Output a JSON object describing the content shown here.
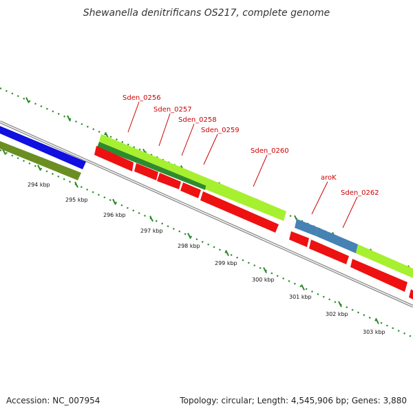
{
  "title": "Shewanella denitrificans OS217, complete genome",
  "footer": {
    "accession": "Accession: NC_007954",
    "summary": "Topology: circular; Length: 4,545,906 bp; Genes: 3,880"
  },
  "tick_labels": [
    "294 kbp",
    "295 kbp",
    "296 kbp",
    "297 kbp",
    "298 kbp",
    "299 kbp",
    "300 kbp",
    "301 kbp",
    "302 kbp",
    "303 kbp"
  ],
  "gene_labels": [
    "Sden_0256",
    "Sden_0257",
    "Sden_0258",
    "Sden_0259",
    "Sden_0260",
    "aroK",
    "Sden_0262"
  ],
  "colors": {
    "backbone": "#8c8c8c",
    "cds_forward_blue": "#1010e0",
    "cds_forward_olive": "#6b8e23",
    "cds_forward_lime": "#a6f030",
    "cds_forward_darkgreen": "#2e8b2e",
    "cds_forward_steelblue": "#4682b4",
    "cds_reverse_red": "#ee1111",
    "tick_green": "#2a8a2a",
    "label_red": "#cc0000"
  }
}
